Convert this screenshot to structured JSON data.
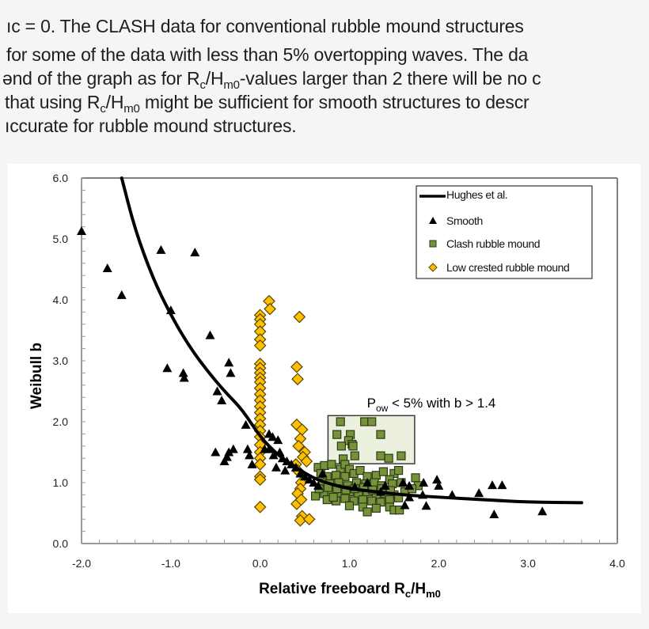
{
  "document": {
    "paragraph_lines": [
      {
        "id": 0,
        "text": "ıc = 0. The CLASH data for conventional rubble mound structures",
        "clipped_top": true
      },
      {
        "id": 1,
        "text": " for some of the data with less than 5% overtopping waves. The da"
      },
      {
        "id": 2,
        "pre": "ənd of the graph as for R",
        "sub1": "c",
        "mid": "/H",
        "sub2": "m0",
        "post": "-values larger than 2 there will be no c"
      },
      {
        "id": 3,
        "pre": "that using R",
        "sub1": "c",
        "mid": "/H",
        "sub2": "m0",
        "post": " might be sufficient for smooth structures to descr"
      },
      {
        "id": 4,
        "text": "ıccurate for rubble mound structures."
      }
    ]
  },
  "chart_data": {
    "type": "scatter",
    "title": "",
    "xlabel": "Relative freeboard Rc/Hm0",
    "xlabel_parts": {
      "main": "Relative freeboard R",
      "sub1": "c",
      "mid": "/H",
      "sub2": "m0"
    },
    "ylabel": "Weibull b",
    "xlim": [
      -2.0,
      4.0
    ],
    "ylim": [
      0.0,
      6.0
    ],
    "x_ticks": [
      "-2.0",
      "-1.0",
      "0.0",
      "1.0",
      "2.0",
      "3.0",
      "4.0"
    ],
    "y_ticks": [
      "0.0",
      "1.0",
      "2.0",
      "3.0",
      "4.0",
      "5.0",
      "6.0"
    ],
    "grid": false,
    "legend_position": "upper right",
    "legend": [
      {
        "label": "Hughes et al.",
        "marker": "line",
        "color": "#000000"
      },
      {
        "label": "Smooth",
        "marker": "triangle",
        "color": "#000000"
      },
      {
        "label": "Clash rubble mound",
        "marker": "square",
        "color": "#76933c"
      },
      {
        "label": "Low crested rubble mound",
        "marker": "diamond",
        "color": "#ffc000"
      }
    ],
    "annotation": {
      "text_main": "P",
      "text_sub": "ow",
      "text_rest": " < 5% with b > 1.4",
      "box": {
        "x0": 0.76,
        "x1": 1.73,
        "y0": 1.31,
        "y1": 2.1
      },
      "fill": "#ebf1de"
    },
    "series": [
      {
        "name": "Hughes et al.",
        "kind": "line",
        "color": "#000000",
        "points": [
          [
            -1.55,
            6.0
          ],
          [
            -1.4,
            5.15
          ],
          [
            -1.2,
            4.35
          ],
          [
            -1.0,
            3.75
          ],
          [
            -0.8,
            3.25
          ],
          [
            -0.6,
            2.85
          ],
          [
            -0.4,
            2.5
          ],
          [
            -0.2,
            2.2
          ],
          [
            0.0,
            1.75
          ],
          [
            0.2,
            1.45
          ],
          [
            0.4,
            1.25
          ],
          [
            0.6,
            1.07
          ],
          [
            0.8,
            0.97
          ],
          [
            1.0,
            0.9
          ],
          [
            1.3,
            0.85
          ],
          [
            1.6,
            0.8
          ],
          [
            2.0,
            0.76
          ],
          [
            2.5,
            0.72
          ],
          [
            3.0,
            0.68
          ],
          [
            3.6,
            0.67
          ]
        ]
      },
      {
        "name": "Smooth",
        "kind": "triangle",
        "color": "#000000",
        "points": [
          [
            -2.0,
            5.13
          ],
          [
            -1.71,
            4.52
          ],
          [
            -1.55,
            4.08
          ],
          [
            -1.11,
            4.82
          ],
          [
            -0.73,
            4.78
          ],
          [
            -1.0,
            3.83
          ],
          [
            -0.56,
            3.42
          ],
          [
            -1.04,
            2.88
          ],
          [
            -0.86,
            2.8
          ],
          [
            -0.85,
            2.72
          ],
          [
            -0.35,
            2.97
          ],
          [
            -0.33,
            2.8
          ],
          [
            -0.48,
            2.5
          ],
          [
            -0.43,
            2.35
          ],
          [
            -0.5,
            1.5
          ],
          [
            -0.35,
            1.5
          ],
          [
            -0.37,
            1.42
          ],
          [
            -0.4,
            1.35
          ],
          [
            -0.3,
            1.55
          ],
          [
            -0.16,
            1.95
          ],
          [
            -0.14,
            1.55
          ],
          [
            -0.12,
            1.45
          ],
          [
            -0.09,
            1.3
          ],
          [
            0.05,
            1.55
          ],
          [
            0.1,
            1.8
          ],
          [
            0.14,
            1.75
          ],
          [
            0.2,
            1.7
          ],
          [
            0.1,
            1.55
          ],
          [
            0.15,
            1.45
          ],
          [
            0.22,
            1.5
          ],
          [
            0.25,
            1.4
          ],
          [
            0.3,
            1.35
          ],
          [
            0.35,
            1.3
          ],
          [
            0.4,
            1.25
          ],
          [
            0.18,
            1.25
          ],
          [
            0.28,
            1.2
          ],
          [
            0.45,
            1.15
          ],
          [
            0.5,
            1.1
          ],
          [
            0.55,
            1.05
          ],
          [
            0.6,
            1.0
          ],
          [
            0.65,
            0.95
          ],
          [
            0.7,
            1.15
          ],
          [
            1.06,
            0.93
          ],
          [
            1.2,
            1.0
          ],
          [
            1.4,
            0.95
          ],
          [
            1.6,
            1.0
          ],
          [
            1.67,
            0.95
          ],
          [
            1.83,
            1.0
          ],
          [
            1.98,
            1.05
          ],
          [
            2.0,
            0.95
          ],
          [
            1.82,
            0.8
          ],
          [
            1.67,
            0.76
          ],
          [
            1.86,
            0.62
          ],
          [
            2.15,
            0.8
          ],
          [
            2.45,
            0.83
          ],
          [
            2.6,
            0.96
          ],
          [
            2.71,
            0.96
          ],
          [
            2.62,
            0.48
          ],
          [
            3.16,
            0.53
          ],
          [
            1.62,
            0.63
          ],
          [
            1.35,
            0.85
          ]
        ]
      },
      {
        "name": "Clash rubble mound",
        "kind": "square",
        "color": "#76933c",
        "points": [
          [
            0.9,
            2.0
          ],
          [
            1.17,
            2.0
          ],
          [
            1.25,
            2.0
          ],
          [
            0.86,
            1.79
          ],
          [
            1.01,
            1.79
          ],
          [
            1.35,
            1.79
          ],
          [
            0.99,
            1.69
          ],
          [
            1.03,
            1.63
          ],
          [
            0.91,
            1.6
          ],
          [
            1.04,
            1.6
          ],
          [
            1.06,
            1.44
          ],
          [
            0.93,
            1.39
          ],
          [
            1.35,
            1.44
          ],
          [
            1.44,
            1.4
          ],
          [
            1.58,
            1.44
          ],
          [
            0.65,
            1.25
          ],
          [
            0.72,
            1.28
          ],
          [
            0.8,
            1.3
          ],
          [
            0.9,
            1.22
          ],
          [
            0.95,
            1.3
          ],
          [
            1.0,
            1.22
          ],
          [
            0.68,
            1.15
          ],
          [
            0.75,
            1.1
          ],
          [
            0.85,
            1.12
          ],
          [
            0.95,
            1.1
          ],
          [
            1.05,
            1.15
          ],
          [
            1.12,
            1.2
          ],
          [
            1.2,
            1.1
          ],
          [
            1.3,
            1.12
          ],
          [
            1.38,
            1.18
          ],
          [
            1.5,
            1.15
          ],
          [
            1.45,
            1.05
          ],
          [
            1.55,
            1.2
          ],
          [
            0.7,
            1.0
          ],
          [
            0.78,
            0.98
          ],
          [
            0.88,
            1.0
          ],
          [
            0.98,
            0.95
          ],
          [
            1.08,
            1.0
          ],
          [
            1.18,
            0.98
          ],
          [
            1.28,
            1.0
          ],
          [
            1.36,
            0.95
          ],
          [
            1.48,
            0.98
          ],
          [
            1.58,
            1.0
          ],
          [
            1.74,
            1.08
          ],
          [
            1.77,
            0.95
          ],
          [
            0.62,
            0.78
          ],
          [
            0.72,
            0.82
          ],
          [
            0.8,
            0.85
          ],
          [
            0.9,
            0.82
          ],
          [
            1.0,
            0.85
          ],
          [
            1.1,
            0.8
          ],
          [
            1.2,
            0.85
          ],
          [
            1.3,
            0.78
          ],
          [
            1.4,
            0.82
          ],
          [
            1.5,
            0.8
          ],
          [
            1.62,
            0.85
          ],
          [
            1.7,
            0.9
          ],
          [
            0.66,
            0.9
          ],
          [
            0.76,
            0.92
          ],
          [
            0.86,
            0.9
          ],
          [
            0.96,
            0.88
          ],
          [
            1.06,
            0.9
          ],
          [
            1.16,
            0.92
          ],
          [
            1.26,
            0.88
          ],
          [
            1.36,
            0.9
          ],
          [
            1.46,
            0.87
          ],
          [
            0.75,
            0.72
          ],
          [
            0.85,
            0.7
          ],
          [
            0.95,
            0.74
          ],
          [
            1.05,
            0.7
          ],
          [
            1.15,
            0.72
          ],
          [
            1.25,
            0.7
          ],
          [
            1.35,
            0.68
          ],
          [
            1.45,
            0.72
          ],
          [
            1.55,
            0.75
          ],
          [
            1.0,
            0.62
          ],
          [
            1.15,
            0.6
          ],
          [
            1.3,
            0.58
          ],
          [
            1.45,
            0.6
          ],
          [
            1.5,
            0.55
          ],
          [
            1.56,
            0.55
          ],
          [
            1.2,
            0.52
          ],
          [
            0.82,
            0.76
          ]
        ]
      },
      {
        "name": "Low crested rubble mound",
        "kind": "diamond",
        "color": "#ffc000",
        "points": [
          [
            0.1,
            3.98
          ],
          [
            0.11,
            3.85
          ],
          [
            0.0,
            3.75
          ],
          [
            0.0,
            3.68
          ],
          [
            0.0,
            3.6
          ],
          [
            0.0,
            3.48
          ],
          [
            0.0,
            3.35
          ],
          [
            0.0,
            3.25
          ],
          [
            0.0,
            2.95
          ],
          [
            0.0,
            2.88
          ],
          [
            0.0,
            2.8
          ],
          [
            0.0,
            2.72
          ],
          [
            0.0,
            2.65
          ],
          [
            0.0,
            2.55
          ],
          [
            0.0,
            2.45
          ],
          [
            0.0,
            2.35
          ],
          [
            0.0,
            2.25
          ],
          [
            0.0,
            2.15
          ],
          [
            0.0,
            2.05
          ],
          [
            0.0,
            1.95
          ],
          [
            0.0,
            1.85
          ],
          [
            0.0,
            1.75
          ],
          [
            0.0,
            1.62
          ],
          [
            0.0,
            1.5
          ],
          [
            0.0,
            1.4
          ],
          [
            0.0,
            1.3
          ],
          [
            0.0,
            1.1
          ],
          [
            0.0,
            1.05
          ],
          [
            0.0,
            0.6
          ],
          [
            0.44,
            3.72
          ],
          [
            0.41,
            2.9
          ],
          [
            0.42,
            2.7
          ],
          [
            0.41,
            1.95
          ],
          [
            0.47,
            1.87
          ],
          [
            0.45,
            1.72
          ],
          [
            0.43,
            1.6
          ],
          [
            0.5,
            1.5
          ],
          [
            0.48,
            1.42
          ],
          [
            0.52,
            1.35
          ],
          [
            0.4,
            1.3
          ],
          [
            0.42,
            1.2
          ],
          [
            0.46,
            1.0
          ],
          [
            0.45,
            0.9
          ],
          [
            0.42,
            0.82
          ],
          [
            0.41,
            0.65
          ],
          [
            0.46,
            0.72
          ],
          [
            0.47,
            0.45
          ],
          [
            0.45,
            0.38
          ],
          [
            0.55,
            0.4
          ]
        ]
      }
    ]
  }
}
